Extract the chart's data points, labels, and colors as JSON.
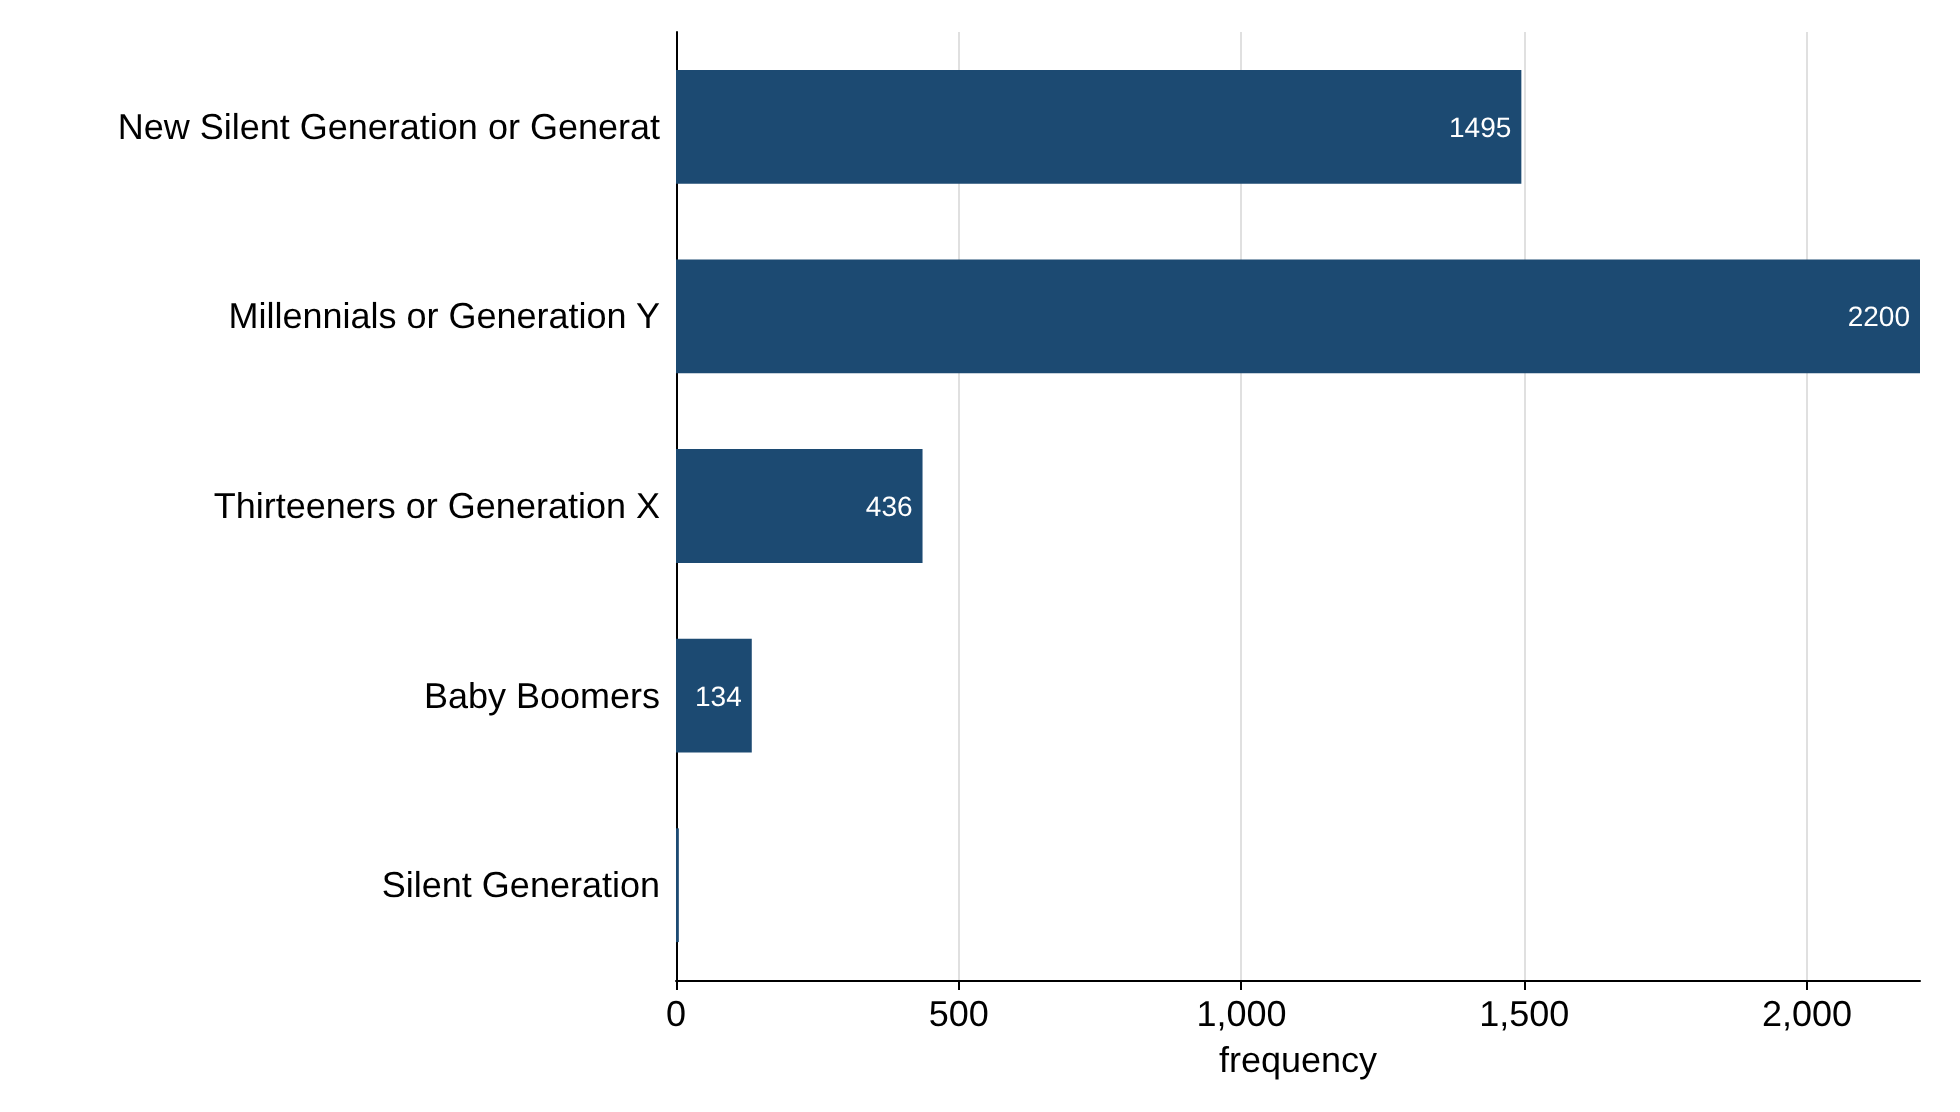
{
  "chart_data": {
    "type": "bar",
    "orientation": "horizontal",
    "xlabel": "frequency",
    "categories": [
      "New Silent Generation or Generat",
      "Millennials or Generation Y",
      "Thirteeners or Generation X",
      "Baby Boomers",
      "Silent Generation"
    ],
    "values": [
      1495,
      2200,
      436,
      134,
      5
    ],
    "color": "#1c4a72",
    "value_labels": [
      "1495",
      "2200",
      "436",
      "134",
      null
    ],
    "xlim": [
      0,
      2200
    ],
    "xticks": [
      0,
      500,
      {
        "value": 1000,
        "label": "1,000"
      },
      {
        "value": 1500,
        "label": "1,500"
      },
      {
        "value": 2000,
        "label": "2,000"
      }
    ],
    "grid": "x"
  }
}
